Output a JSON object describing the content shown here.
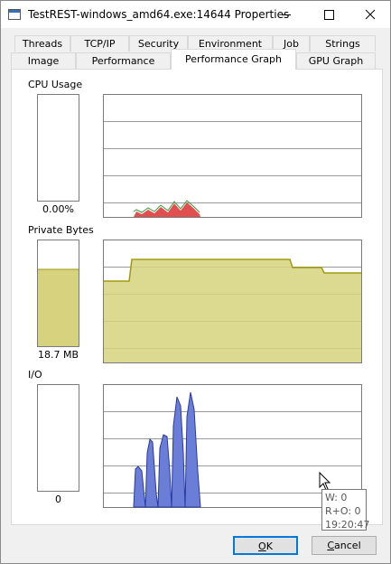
{
  "window": {
    "title": "TestREST-windows_amd64.exe:14644 Properties",
    "tabs_row1": [
      "Threads",
      "TCP/IP",
      "Security",
      "Environment",
      "Job",
      "Strings"
    ],
    "tabs_row2": [
      "Image",
      "Performance",
      "Performance Graph",
      "GPU Graph"
    ]
  },
  "graphs": [
    {
      "label": "CPU Usage",
      "value": "0.00%"
    },
    {
      "label": "Private Bytes",
      "value": "18.7 MB"
    },
    {
      "label": "I/O",
      "value": "0"
    }
  ],
  "tooltip": {
    "lines": [
      "W: 0",
      "R+O: 0",
      "19:20:47"
    ]
  },
  "buttons": {
    "ok": "OK",
    "cancel": "Cancel"
  }
}
